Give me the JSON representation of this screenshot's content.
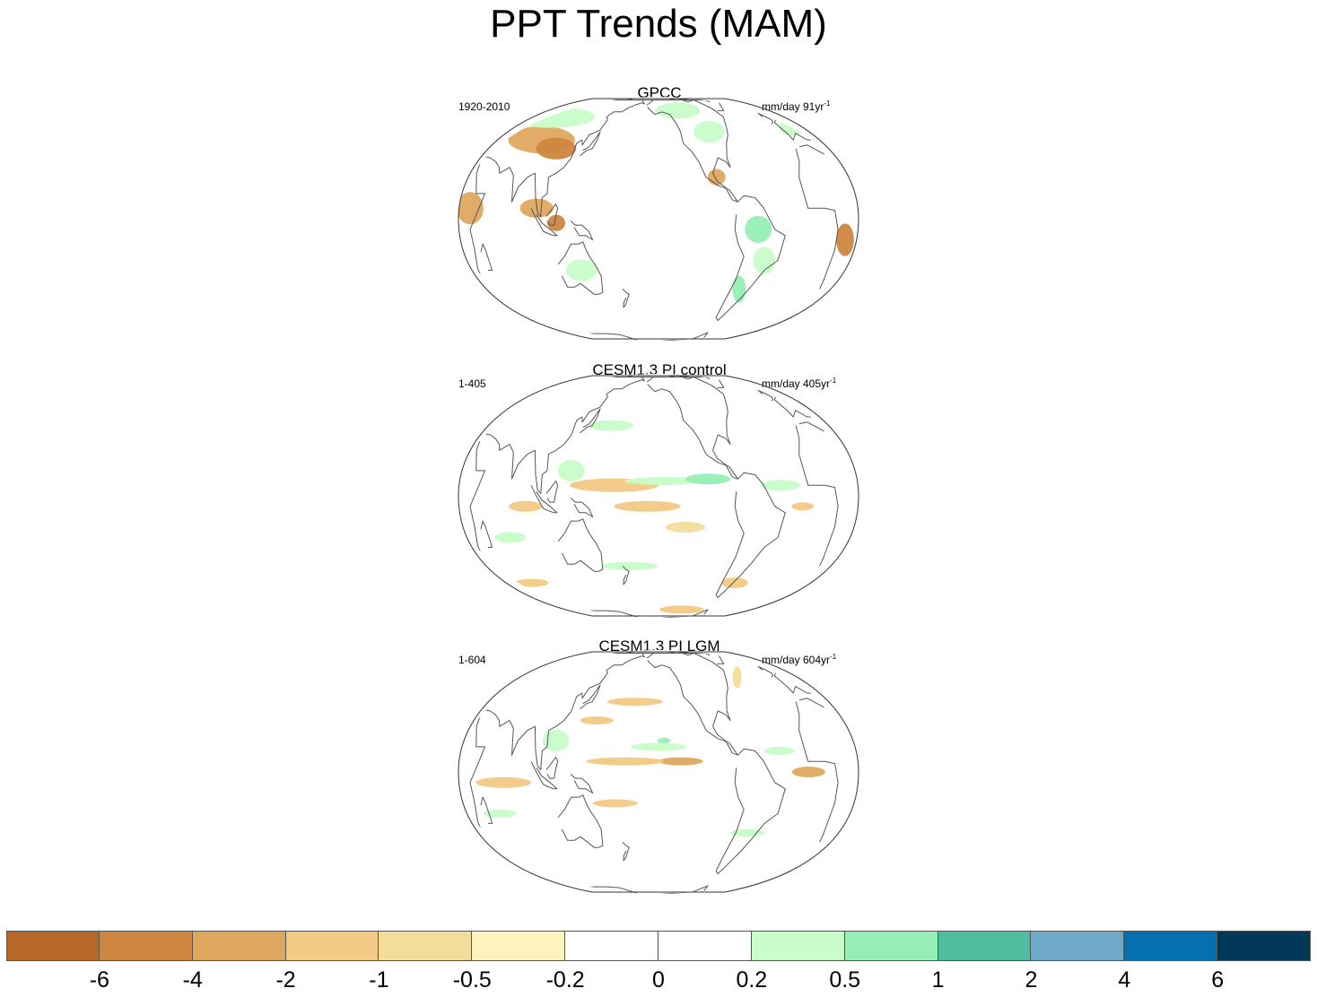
{
  "title": "PPT Trends (MAM)",
  "panels": [
    {
      "title": "GPCC",
      "period": "1920-2010",
      "units": "mm/day 91yr",
      "units_exp": "-1",
      "fields": [
        {
          "lon": 80,
          "lat": 40,
          "rx": 30,
          "ry": 10,
          "c": 2
        },
        {
          "lon": 102,
          "lat": 35,
          "rx": 18,
          "ry": 8,
          "c": 1
        },
        {
          "lon": 60,
          "lat": 55,
          "rx": 40,
          "ry": 8,
          "c": 8
        },
        {
          "lon": 100,
          "lat": 5,
          "rx": 15,
          "ry": 7,
          "c": 2
        },
        {
          "lon": 118,
          "lat": -2,
          "rx": 8,
          "ry": 6,
          "c": 1
        },
        {
          "lon": 135,
          "lat": -25,
          "rx": 14,
          "ry": 8,
          "c": 8
        },
        {
          "lon": 40,
          "lat": 5,
          "rx": 12,
          "ry": 12,
          "c": 2
        },
        {
          "lon": 20,
          "lat": -10,
          "rx": 8,
          "ry": 12,
          "c": 1
        },
        {
          "lon": 270,
          "lat": 45,
          "rx": 14,
          "ry": 8,
          "c": 8
        },
        {
          "lon": 265,
          "lat": 20,
          "rx": 8,
          "ry": 6,
          "c": 2
        },
        {
          "lon": 300,
          "lat": -5,
          "rx": 12,
          "ry": 10,
          "c": 9
        },
        {
          "lon": 310,
          "lat": -20,
          "rx": 10,
          "ry": 10,
          "c": 8
        },
        {
          "lon": 295,
          "lat": -35,
          "rx": 6,
          "ry": 10,
          "c": 9
        },
        {
          "lon": 15,
          "lat": 48,
          "rx": 12,
          "ry": 6,
          "c": 8
        },
        {
          "lon": 240,
          "lat": 60,
          "rx": 20,
          "ry": 6,
          "c": 8
        }
      ]
    },
    {
      "title": "CESM1.3 PI control",
      "period": "1-405",
      "units": "mm/day 405yr",
      "units_exp": "-1",
      "fields": [
        {
          "lon": 170,
          "lat": 5,
          "rx": 40,
          "ry": 5,
          "c": 3
        },
        {
          "lon": 215,
          "lat": 7,
          "rx": 35,
          "ry": 3,
          "c": 8
        },
        {
          "lon": 255,
          "lat": 8,
          "rx": 20,
          "ry": 4,
          "c": 9
        },
        {
          "lon": 200,
          "lat": -5,
          "rx": 30,
          "ry": 4,
          "c": 3
        },
        {
          "lon": 235,
          "lat": -15,
          "rx": 18,
          "ry": 4,
          "c": 4
        },
        {
          "lon": 130,
          "lat": 12,
          "rx": 12,
          "ry": 8,
          "c": 8
        },
        {
          "lon": 320,
          "lat": 5,
          "rx": 18,
          "ry": 4,
          "c": 8
        },
        {
          "lon": 340,
          "lat": -5,
          "rx": 10,
          "ry": 3,
          "c": 3
        },
        {
          "lon": 90,
          "lat": -5,
          "rx": 15,
          "ry": 4,
          "c": 3
        },
        {
          "lon": 70,
          "lat": -20,
          "rx": 14,
          "ry": 4,
          "c": 8
        },
        {
          "lon": 160,
          "lat": 35,
          "rx": 20,
          "ry": 4,
          "c": 8
        },
        {
          "lon": 180,
          "lat": -35,
          "rx": 25,
          "ry": 3,
          "c": 8
        },
        {
          "lon": 300,
          "lat": -45,
          "rx": 12,
          "ry": 4,
          "c": 3
        },
        {
          "lon": 60,
          "lat": -45,
          "rx": 15,
          "ry": 3,
          "c": 3
        },
        {
          "lon": 250,
          "lat": -65,
          "rx": 20,
          "ry": 3,
          "c": 3
        }
      ]
    },
    {
      "title": "CESM1.3 PI LGM",
      "period": "1-604",
      "units": "mm/day 604yr",
      "units_exp": "-1",
      "fields": [
        {
          "lon": 230,
          "lat": 5,
          "rx": 20,
          "ry": 3,
          "c": 2
        },
        {
          "lon": 180,
          "lat": 5,
          "rx": 35,
          "ry": 3,
          "c": 3
        },
        {
          "lon": 210,
          "lat": 12,
          "rx": 25,
          "ry": 3,
          "c": 8
        },
        {
          "lon": 215,
          "lat": 15,
          "rx": 6,
          "ry": 2,
          "c": 9
        },
        {
          "lon": 345,
          "lat": 0,
          "rx": 15,
          "ry": 4,
          "c": 2
        },
        {
          "lon": 320,
          "lat": 10,
          "rx": 14,
          "ry": 3,
          "c": 8
        },
        {
          "lon": 70,
          "lat": -5,
          "rx": 25,
          "ry": 4,
          "c": 3
        },
        {
          "lon": 115,
          "lat": 15,
          "rx": 12,
          "ry": 8,
          "c": 8
        },
        {
          "lon": 150,
          "lat": 25,
          "rx": 15,
          "ry": 3,
          "c": 3
        },
        {
          "lon": 60,
          "lat": -20,
          "rx": 15,
          "ry": 3,
          "c": 8
        },
        {
          "lon": 170,
          "lat": -15,
          "rx": 20,
          "ry": 3,
          "c": 3
        },
        {
          "lon": 300,
          "lat": -30,
          "rx": 15,
          "ry": 3,
          "c": 8
        },
        {
          "lon": 185,
          "lat": 35,
          "rx": 25,
          "ry": 3,
          "c": 3
        },
        {
          "lon": 310,
          "lat": 50,
          "rx": 4,
          "ry": 8,
          "c": 4
        }
      ]
    }
  ],
  "colorbar": {
    "colors": [
      "#b5682a",
      "#cf863f",
      "#dfa660",
      "#f2c985",
      "#f2dd9a",
      "#fff4c0",
      "#ffffff",
      "#ffffff",
      "#c8fcc8",
      "#96eeb4",
      "#50bd9f",
      "#70aacb",
      "#0570b0",
      "#023858"
    ],
    "labels": [
      "-6",
      "-4",
      "-2",
      "-1",
      "-0.5",
      "-0.2",
      "0",
      "0.2",
      "0.5",
      "1",
      "2",
      "4",
      "6"
    ]
  }
}
